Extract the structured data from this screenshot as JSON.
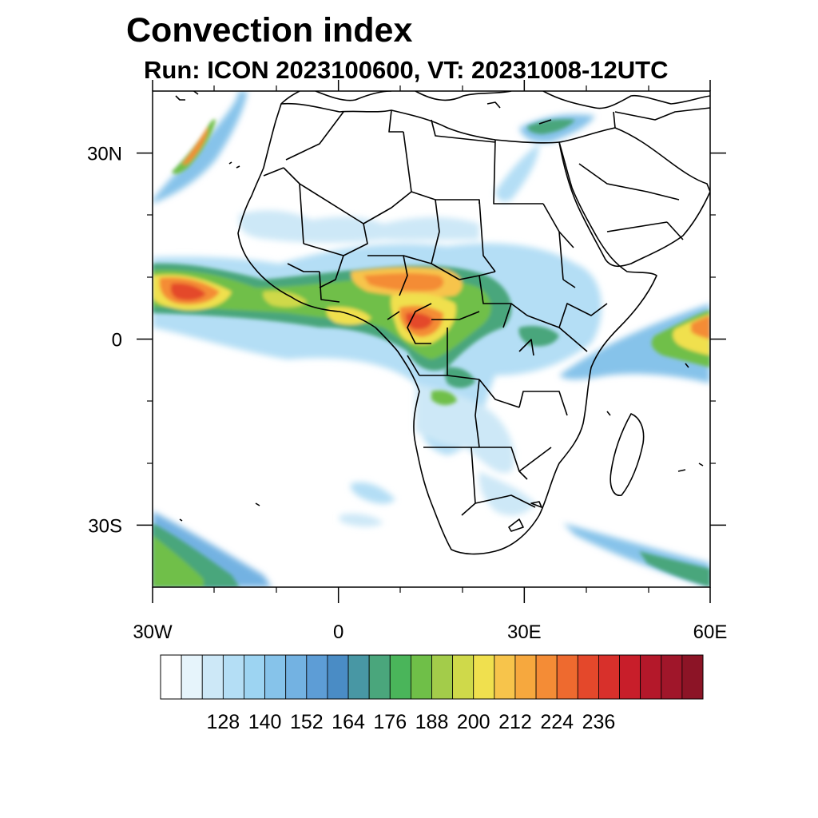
{
  "title": "Convection index",
  "subtitle": "Run: ICON 2023100600,  VT: 20231008-12UTC",
  "axes": {
    "lon_ticks": [
      {
        "value": -30,
        "label": "30W"
      },
      {
        "value": 0,
        "label": "0"
      },
      {
        "value": 30,
        "label": "30E"
      },
      {
        "value": 60,
        "label": "60E"
      }
    ],
    "lat_ticks": [
      {
        "value": 30,
        "label": "30N"
      },
      {
        "value": 0,
        "label": "0"
      },
      {
        "value": -30,
        "label": "30S"
      }
    ],
    "lon_range": [
      -30,
      60
    ],
    "lat_range": [
      -40,
      40
    ]
  },
  "colorbar": {
    "colors": [
      "#ffffff",
      "#e6f4fb",
      "#cde8f7",
      "#b4def5",
      "#9dd4f2",
      "#86c3ea",
      "#73b2e2",
      "#5d9dd6",
      "#4a8cc5",
      "#4897a4",
      "#4aa67c",
      "#4ab55a",
      "#6fbf48",
      "#a3cc4a",
      "#cfd94a",
      "#f0e04e",
      "#f7c44b",
      "#f6a83e",
      "#f48c36",
      "#ee6a2f",
      "#e4482b",
      "#d8302b",
      "#c81e2a",
      "#b4182a",
      "#a0162a",
      "#8c1426"
    ],
    "labels": [
      "128",
      "140",
      "152",
      "164",
      "176",
      "188",
      "200",
      "212",
      "224",
      "236"
    ]
  }
}
